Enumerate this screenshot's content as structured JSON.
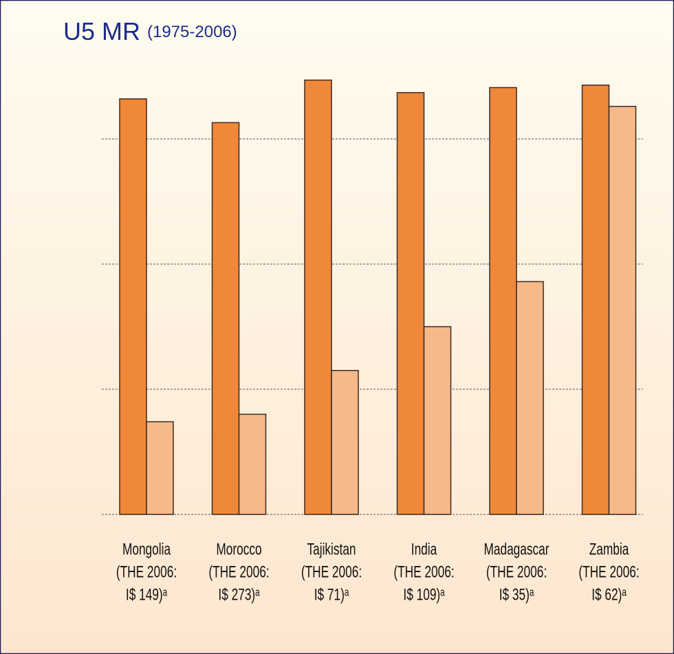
{
  "chart_data": {
    "type": "bar",
    "title": "U5 MR",
    "subtitle": "(1975-2006)",
    "categories": [
      [
        "Mongolia",
        "(THE 2006:",
        "I$ 149)ᵃ"
      ],
      [
        "Morocco",
        "(THE 2006:",
        "I$ 273)ᵃ"
      ],
      [
        "Tajikistan",
        "(THE 2006:",
        "I$ 71)ᵃ"
      ],
      [
        "India",
        "(THE 2006:",
        "I$ 109)ᵃ"
      ],
      [
        "Madagascar",
        "(THE 2006:",
        "I$ 35)ᵃ"
      ],
      [
        "Zambia",
        "(THE 2006:",
        "I$ 62)ᵃ"
      ]
    ],
    "series": [
      {
        "color": "#f0883a",
        "values": [
          332,
          313,
          347,
          337,
          341,
          343
        ]
      },
      {
        "color": "#f6b98a",
        "values": [
          74,
          80,
          115,
          150,
          186,
          326
        ]
      }
    ],
    "ylim": [
      0,
      350
    ],
    "yticks": [
      0,
      100,
      200,
      300
    ],
    "grid": true
  }
}
